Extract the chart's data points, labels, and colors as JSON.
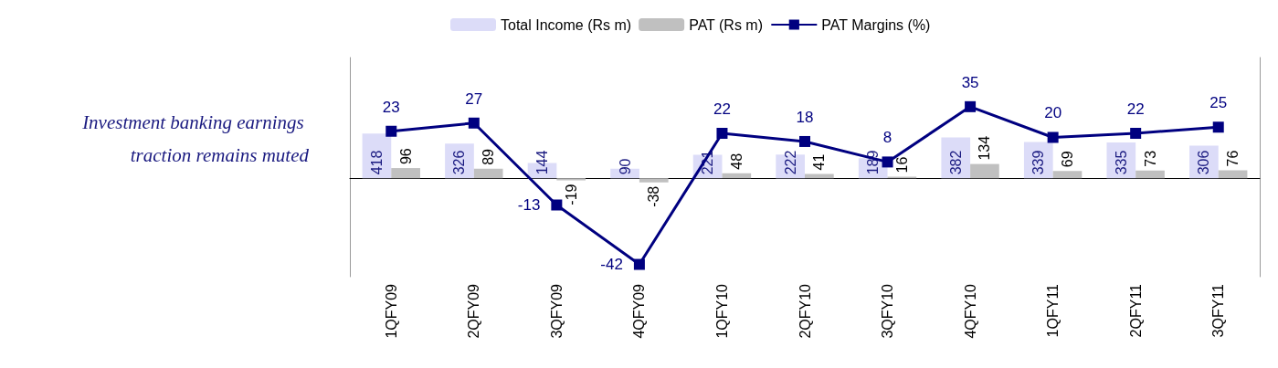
{
  "chart_data": {
    "type": "bar",
    "categories": [
      "1QFY09",
      "2QFY09",
      "3QFY09",
      "4QFY09",
      "1QFY10",
      "2QFY10",
      "3QFY10",
      "4QFY10",
      "1QFY11",
      "2QFY11",
      "3QFY11"
    ],
    "series": [
      {
        "name": "Total Income (Rs m)",
        "color": "#dcdcf8",
        "values": [
          418,
          326,
          144,
          90,
          221,
          222,
          189,
          382,
          339,
          335,
          306
        ]
      },
      {
        "name": "PAT (Rs m)",
        "color": "#c0c0c0",
        "values": [
          96,
          89,
          -19,
          -38,
          48,
          41,
          16,
          134,
          69,
          73,
          76
        ]
      },
      {
        "name": "PAT Margins (%)",
        "type": "line",
        "axis": "y2",
        "color": "#000080",
        "values": [
          23,
          27,
          -13,
          -42,
          22,
          18,
          8,
          35,
          20,
          22,
          25
        ]
      }
    ],
    "annotations": [
      "Investment banking earnings traction remains muted"
    ],
    "ylim": [
      -920,
      1130
    ],
    "y2lim": [
      -48,
      59
    ],
    "data_labels": true,
    "legend": "top",
    "grid": false,
    "marker": "square",
    "line_style": "solid"
  }
}
